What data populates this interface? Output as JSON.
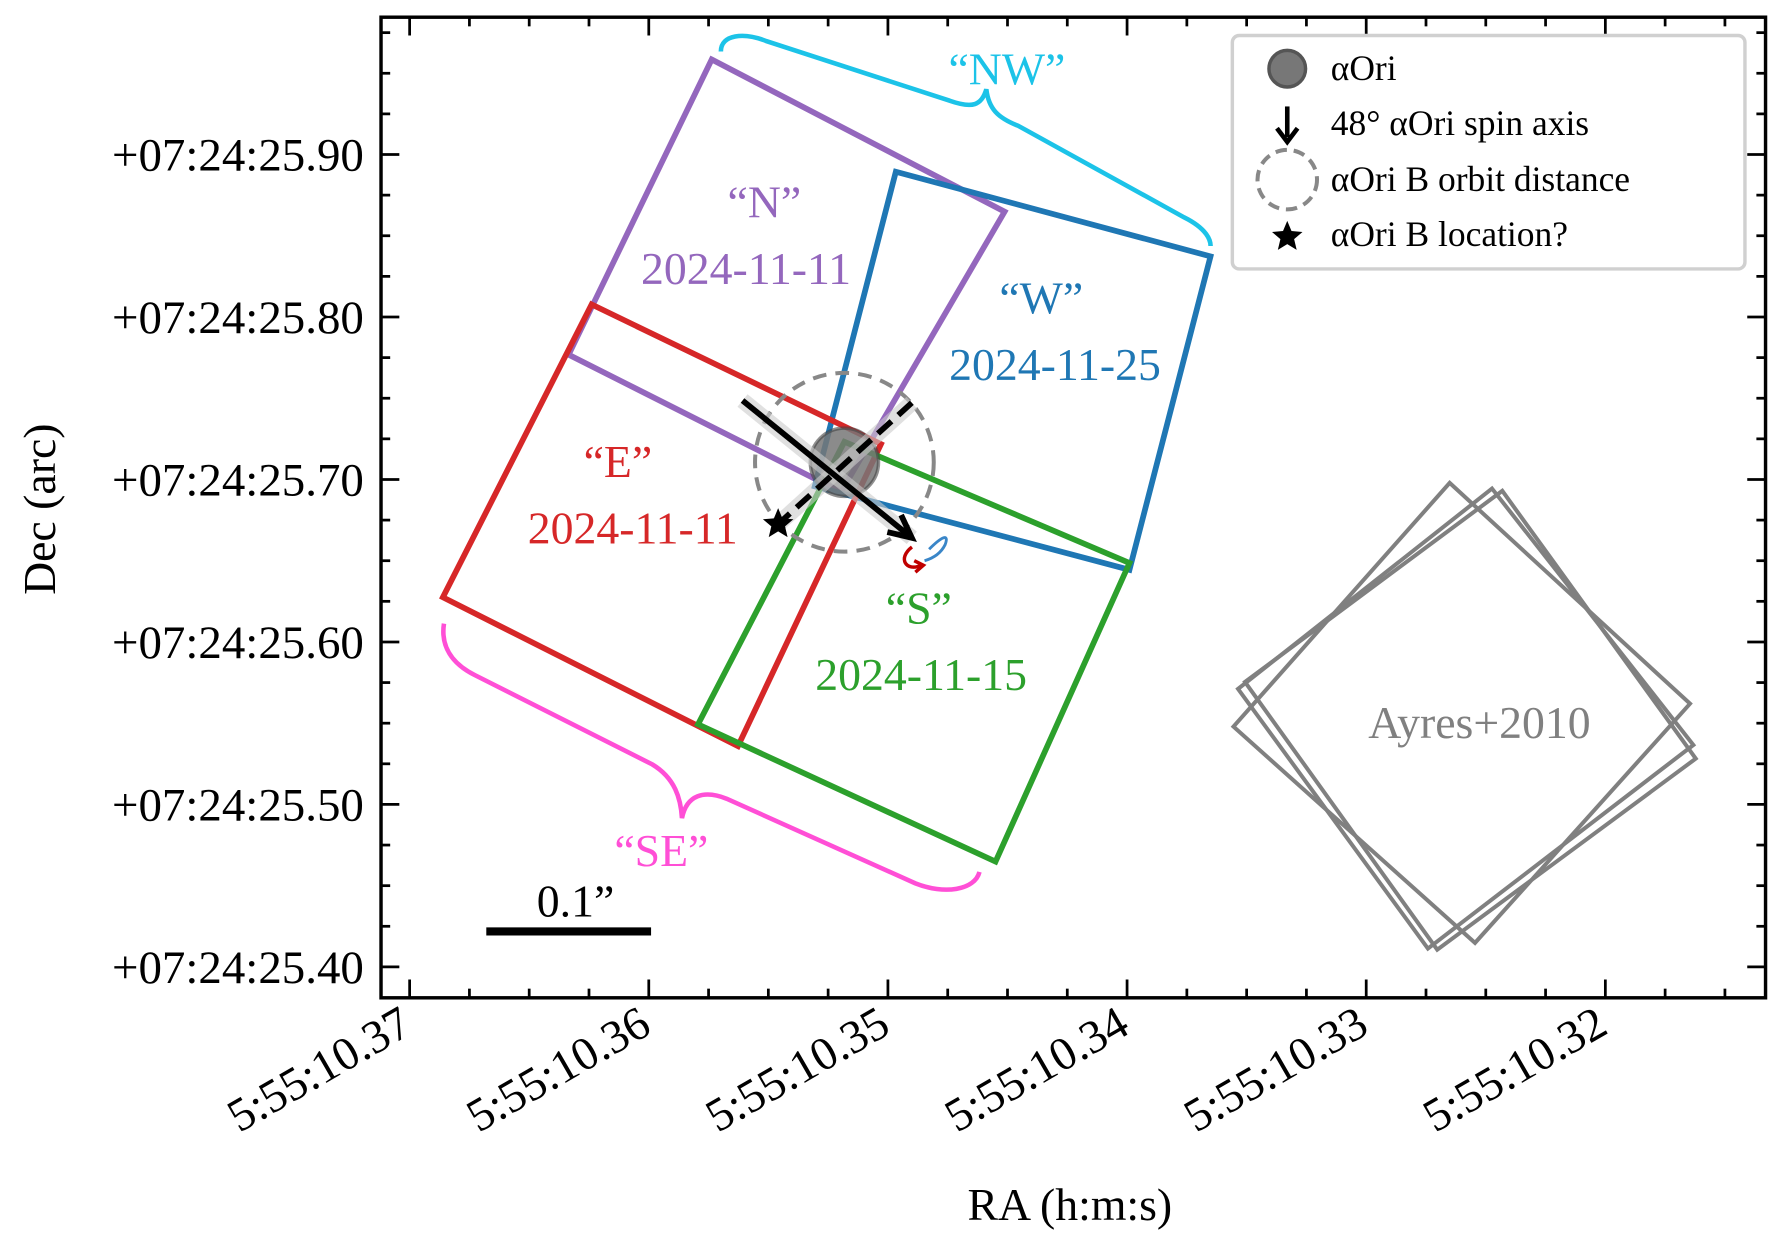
{
  "chart_data": {
    "type": "scatter",
    "title": "",
    "xlabel": "RA (h:m:s)",
    "ylabel": "Dec (arc)",
    "xlim_ra_seconds": [
      10.3712,
      10.3133
    ],
    "ylim_dec_arcsec": [
      25.381,
      25.9845
    ],
    "x_ticks": [
      {
        "value": 10.37,
        "label": "5:55:10.37"
      },
      {
        "value": 10.36,
        "label": "5:55:10.36"
      },
      {
        "value": 10.35,
        "label": "5:55:10.35"
      },
      {
        "value": 10.34,
        "label": "5:55:10.34"
      },
      {
        "value": 10.33,
        "label": "5:55:10.33"
      },
      {
        "value": 10.32,
        "label": "5:55:10.32"
      }
    ],
    "y_ticks": [
      {
        "value": 25.9,
        "label": "+07:24:25.90"
      },
      {
        "value": 25.8,
        "label": "+07:24:25.80"
      },
      {
        "value": 25.7,
        "label": "+07:24:25.70"
      },
      {
        "value": 25.6,
        "label": "+07:24:25.60"
      },
      {
        "value": 25.5,
        "label": "+07:24:25.50"
      },
      {
        "value": 25.4,
        "label": "+07:24:25.40"
      }
    ],
    "footprints": [
      {
        "name": "“N”",
        "date": "2024-11-11",
        "color": "#9467bd",
        "corners": [
          [
            10.35737,
            25.9585
          ],
          [
            10.34512,
            25.8648
          ],
          [
            10.35196,
            25.6923
          ],
          [
            10.36335,
            25.7768
          ]
        ]
      },
      {
        "name": "“W”",
        "date": "2024-11-25",
        "color": "#1f77b4",
        "corners": [
          [
            10.34967,
            25.8894
          ],
          [
            10.33651,
            25.8373
          ],
          [
            10.3399,
            25.6444
          ],
          [
            10.35306,
            25.6958
          ]
        ]
      },
      {
        "name": "“E”",
        "date": "2024-11-11",
        "color": "#d62728",
        "corners": [
          [
            10.36239,
            25.8077
          ],
          [
            10.35029,
            25.7218
          ],
          [
            10.35627,
            25.5359
          ],
          [
            10.36861,
            25.6275
          ]
        ]
      },
      {
        "name": "“S”",
        "date": "2024-11-15",
        "color": "#2ca02c",
        "corners": [
          [
            10.35182,
            25.7232
          ],
          [
            10.3399,
            25.6486
          ],
          [
            10.3455,
            25.4648
          ],
          [
            10.35794,
            25.5493
          ]
        ]
      }
    ],
    "ayres_boxes": {
      "label": "Ayres+2010",
      "color": "#808080",
      "boxes": [
        [
          [
            10.32651,
            25.6979
          ],
          [
            10.31646,
            25.562
          ],
          [
            10.32545,
            25.4148
          ],
          [
            10.33555,
            25.5479
          ]
        ],
        [
          [
            10.32474,
            25.6944
          ],
          [
            10.31632,
            25.5366
          ],
          [
            10.32742,
            25.4113
          ],
          [
            10.33536,
            25.5711
          ]
        ],
        [
          [
            10.32431,
            25.693
          ],
          [
            10.31622,
            25.5282
          ],
          [
            10.32703,
            25.4106
          ],
          [
            10.33507,
            25.5754
          ]
        ]
      ]
    },
    "alpha_ori": {
      "ra_s": 10.35182,
      "dec_arcsec": 25.7106,
      "radius_arcsec": 0.021,
      "color": "#777777"
    },
    "orbit_distance_radius_arcsec": 0.055,
    "spin_axis": {
      "angle_deg": 48,
      "from": [
        10.35608,
        25.7486
      ],
      "to": [
        10.349,
        25.6641
      ]
    },
    "companion_line_from": [
      10.349,
      25.7472
    ],
    "alpha_ori_b": {
      "ra_s": 10.35459,
      "dec_arcsec": 25.6725
    },
    "groups": [
      {
        "label": "“NW”",
        "color": "#1cc3e8"
      },
      {
        "label": "“SE”",
        "color": "#ff4fd6"
      }
    ],
    "scale_bar_label": "0.1”",
    "legend": {
      "placement": "top-right",
      "entries": [
        {
          "marker": "filled-circle",
          "label": "αOri"
        },
        {
          "marker": "arrow-down",
          "label": "48° αOri spin axis"
        },
        {
          "marker": "dashed-circle",
          "label": "αOri B orbit distance"
        },
        {
          "marker": "star",
          "label": "αOri B location?"
        }
      ]
    }
  }
}
